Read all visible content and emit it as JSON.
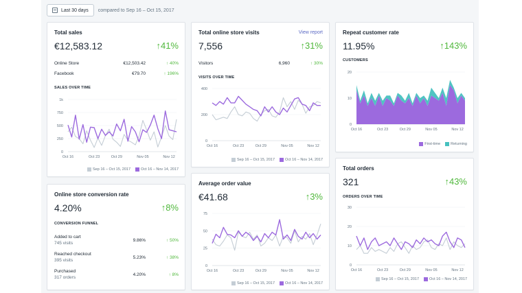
{
  "toolbar": {
    "date_range": "Last 30 days",
    "compare_text": "compared to Sep 16 – Oct 15, 2017"
  },
  "colors": {
    "purple": "#9c6ade",
    "gray": "#c4cdd5",
    "teal": "#47c1bf",
    "green": "#50b83c",
    "link": "#5c6ac4"
  },
  "cards": {
    "total_sales": {
      "title": "Total sales",
      "value": "€12,583.12",
      "change": "41%",
      "rows": [
        {
          "label": "Online Store",
          "value": "€12,503.42",
          "change": "40%"
        },
        {
          "label": "Facebook",
          "value": "€79.70",
          "change": "196%"
        }
      ],
      "section": "SALES OVER TIME",
      "legend": [
        "Sep 16 – Oct 15, 2017",
        "Oct 16 – Nov 14, 2017"
      ]
    },
    "online_visits": {
      "title": "Total online store visits",
      "link": "View report",
      "value": "7,556",
      "change": "31%",
      "rows": [
        {
          "label": "Visitors",
          "value": "6,960",
          "change": "30%"
        }
      ],
      "section": "VISITS OVER TIME",
      "legend": [
        "Sep 16 – Oct 15, 2017",
        "Oct 16 – Nov 14, 2017"
      ]
    },
    "repeat_rate": {
      "title": "Repeat customer rate",
      "value": "11.95%",
      "change": "143%",
      "section": "CUSTOMERS",
      "legend": [
        "First-time",
        "Returning"
      ]
    },
    "conversion": {
      "title": "Online store conversion rate",
      "value": "4.20%",
      "change": "8%",
      "section": "CONVERSION FUNNEL",
      "rows": [
        {
          "label": "Added to cart",
          "sub": "745 visits",
          "value": "9.86%",
          "change": "50%"
        },
        {
          "label": "Reached checkout",
          "sub": "395 visits",
          "value": "5.23%",
          "change": "38%"
        },
        {
          "label": "Purchased",
          "sub": "317 orders",
          "value": "4.20%",
          "change": "8%"
        }
      ]
    },
    "aov": {
      "title": "Average order value",
      "value": "€41.68",
      "change": "3%",
      "legend": [
        "Sep 16 – Oct 15, 2017",
        "Oct 16 – Nov 14, 2017"
      ]
    },
    "total_orders": {
      "title": "Total orders",
      "value": "321",
      "change": "43%",
      "section": "ORDERS OVER TIME",
      "legend": [
        "Sep 16 – Oct 15, 2017",
        "Oct 16 – Nov 14, 2017"
      ]
    }
  },
  "chart_data": [
    {
      "id": "sales",
      "type": "line",
      "x_ticks": [
        "Oct 16",
        "Oct 23",
        "Oct 29",
        "Nov 05",
        "Nov 12"
      ],
      "y_ticks": [
        "0",
        "250",
        "500",
        "750",
        "1k"
      ],
      "ylim": [
        0,
        1000
      ],
      "series": [
        {
          "name": "Sep 16 – Oct 15, 2017",
          "color": "#c4cdd5",
          "values": [
            380,
            470,
            290,
            250,
            150,
            400,
            220,
            80,
            260,
            120,
            310,
            430,
            240,
            180,
            100,
            330,
            220,
            180,
            130,
            300,
            600,
            420,
            220,
            380,
            90,
            280,
            500,
            300,
            230,
            620
          ]
        },
        {
          "name": "Oct 16 – Nov 14, 2017",
          "color": "#9c6ade",
          "values": [
            510,
            280,
            700,
            240,
            520,
            180,
            470,
            460,
            250,
            430,
            310,
            380,
            300,
            530,
            400,
            620,
            200,
            480,
            380,
            190,
            420,
            370,
            510,
            700,
            440,
            250,
            780,
            420,
            400,
            380
          ]
        }
      ]
    },
    {
      "id": "visits",
      "type": "line",
      "x_ticks": [
        "Oct 16",
        "Oct 23",
        "Oct 29",
        "Nov 05",
        "Nov 12"
      ],
      "y_ticks": [
        "0",
        "200",
        "400"
      ],
      "ylim": [
        0,
        400
      ],
      "series": [
        {
          "name": "Sep 16 – Oct 15, 2017",
          "color": "#c4cdd5",
          "values": [
            200,
            160,
            170,
            180,
            170,
            220,
            260,
            200,
            190,
            220,
            210,
            170,
            150,
            200,
            230,
            240,
            190,
            180,
            220,
            330,
            260,
            300,
            240,
            310,
            280,
            210,
            260,
            270,
            300,
            290
          ]
        },
        {
          "name": "Oct 16 – Nov 14, 2017",
          "color": "#9c6ade",
          "values": [
            290,
            270,
            300,
            280,
            330,
            290,
            290,
            340,
            310,
            280,
            260,
            240,
            230,
            190,
            260,
            220,
            260,
            220,
            200,
            250,
            220,
            270,
            320,
            330,
            280,
            270,
            230,
            290,
            270,
            270
          ]
        }
      ]
    },
    {
      "id": "customers",
      "type": "area",
      "x_ticks": [
        "Oct 16",
        "Oct 23",
        "Oct 29",
        "Nov 05",
        "Nov 12"
      ],
      "y_ticks": [
        "0",
        "10",
        "20"
      ],
      "ylim": [
        0,
        20
      ],
      "series": [
        {
          "name": "First-time",
          "color": "#9c6ade",
          "values": [
            13,
            8,
            11,
            7,
            10,
            7,
            11,
            7,
            10,
            9,
            7,
            11,
            9,
            8,
            10,
            7,
            11,
            8,
            10,
            7,
            11,
            10,
            9,
            12,
            7,
            15,
            13,
            8,
            11,
            9
          ]
        },
        {
          "name": "Returning",
          "color": "#47c1bf",
          "values": [
            2,
            1,
            2,
            1,
            2,
            2,
            1,
            2,
            1,
            2,
            1,
            1,
            2,
            1,
            2,
            1,
            1,
            2,
            1,
            2,
            3,
            2,
            1,
            2,
            3,
            2,
            1,
            2,
            1,
            1
          ]
        }
      ]
    },
    {
      "id": "aov",
      "type": "line",
      "x_ticks": [
        "Oct 16",
        "Oct 23",
        "Oct 29",
        "Nov 05",
        "Nov 12"
      ],
      "y_ticks": [
        "0",
        "25",
        "50",
        "75"
      ],
      "ylim": [
        0,
        75
      ],
      "series": [
        {
          "name": "Sep 16 – Oct 15, 2017",
          "color": "#c4cdd5",
          "values": [
            38,
            30,
            28,
            35,
            44,
            40,
            22,
            48,
            42,
            40,
            48,
            38,
            44,
            28,
            32,
            40,
            36,
            44,
            28,
            42,
            40,
            32,
            50,
            34,
            42,
            38,
            46,
            30,
            44,
            60
          ]
        },
        {
          "name": "Oct 16 – Nov 14, 2017",
          "color": "#9c6ade",
          "values": [
            32,
            45,
            40,
            55,
            45,
            44,
            40,
            50,
            42,
            48,
            44,
            36,
            42,
            34,
            46,
            40,
            48,
            44,
            66,
            38,
            44,
            36,
            52,
            42,
            38,
            48,
            40,
            46,
            38,
            44
          ]
        }
      ]
    },
    {
      "id": "orders",
      "type": "line",
      "x_ticks": [
        "Oct 16",
        "Oct 23",
        "Oct 29",
        "Nov 05",
        "Nov 12"
      ],
      "y_ticks": [
        "0",
        "10",
        "20",
        "30"
      ],
      "ylim": [
        0,
        30
      ],
      "series": [
        {
          "name": "Sep 16 – Oct 15, 2017",
          "color": "#c4cdd5",
          "values": [
            8,
            10,
            6,
            6,
            9,
            7,
            8,
            7,
            6,
            9,
            7,
            11,
            12,
            9,
            6,
            10,
            8,
            9,
            12,
            13,
            9,
            8,
            11,
            10,
            14,
            8,
            12,
            10,
            9,
            11
          ]
        },
        {
          "name": "Oct 16 – Nov 14, 2017",
          "color": "#9c6ade",
          "values": [
            15,
            10,
            14,
            8,
            12,
            14,
            10,
            11,
            12,
            10,
            14,
            11,
            8,
            12,
            11,
            9,
            13,
            11,
            14,
            12,
            13,
            11,
            10,
            15,
            17,
            12,
            9,
            14,
            13,
            9
          ]
        }
      ]
    }
  ]
}
